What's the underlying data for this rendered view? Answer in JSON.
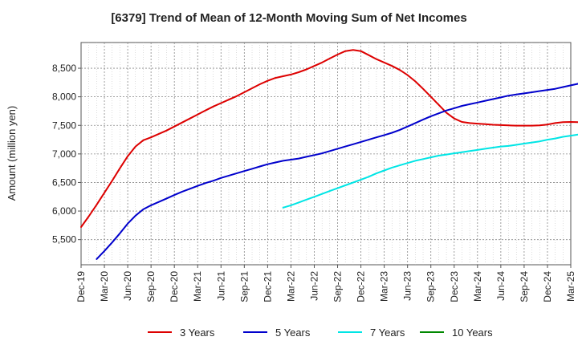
{
  "chart_data": {
    "type": "line",
    "title": "[6379]  Trend of Mean of 12-Month Moving Sum of Net Incomes",
    "ylabel": "Amount (million yen)",
    "xlabel": "",
    "ylim": [
      5060,
      8950
    ],
    "yticks": [
      5500,
      6000,
      6500,
      7000,
      7500,
      8000,
      8500
    ],
    "ytick_labels": [
      "5,500",
      "6,000",
      "6,500",
      "7,000",
      "7,500",
      "8,000",
      "8,500"
    ],
    "x_start": "2019-12",
    "x_end": "2025-03",
    "xtick_labels": [
      "Dec-19",
      "Mar-20",
      "Jun-20",
      "Sep-20",
      "Dec-20",
      "Mar-21",
      "Jun-21",
      "Sep-21",
      "Dec-21",
      "Mar-22",
      "Jun-22",
      "Sep-22",
      "Dec-22",
      "Mar-23",
      "Jun-23",
      "Sep-23",
      "Dec-23",
      "Mar-24",
      "Jun-24",
      "Sep-24",
      "Dec-24",
      "Mar-25"
    ],
    "grid": true,
    "legend_position": "bottom",
    "series": [
      {
        "name": "3 Years",
        "color": "#dd0000",
        "start": "2019-12",
        "values": [
          5720,
          5910,
          6110,
          6320,
          6530,
          6750,
          6960,
          7130,
          7240,
          7290,
          7350,
          7410,
          7480,
          7550,
          7620,
          7690,
          7760,
          7830,
          7890,
          7950,
          8010,
          8080,
          8150,
          8220,
          8280,
          8330,
          8360,
          8390,
          8430,
          8480,
          8540,
          8600,
          8670,
          8740,
          8800,
          8820,
          8800,
          8730,
          8660,
          8600,
          8540,
          8470,
          8380,
          8270,
          8140,
          8000,
          7860,
          7720,
          7620,
          7560,
          7540,
          7530,
          7520,
          7510,
          7505,
          7500,
          7495,
          7495,
          7495,
          7500,
          7515,
          7540,
          7555,
          7560,
          7555,
          7540,
          7535,
          7545,
          7570
        ]
      },
      {
        "name": "5 Years",
        "color": "#0000cc",
        "start": "2020-02",
        "values": [
          5160,
          5300,
          5450,
          5610,
          5780,
          5920,
          6030,
          6100,
          6160,
          6220,
          6280,
          6340,
          6390,
          6440,
          6490,
          6530,
          6580,
          6620,
          6660,
          6700,
          6740,
          6780,
          6820,
          6850,
          6880,
          6900,
          6920,
          6950,
          6980,
          7010,
          7050,
          7090,
          7130,
          7170,
          7210,
          7250,
          7290,
          7330,
          7370,
          7420,
          7480,
          7540,
          7600,
          7660,
          7710,
          7760,
          7800,
          7840,
          7870,
          7900,
          7930,
          7960,
          7990,
          8020,
          8040,
          8060,
          8080,
          8100,
          8120,
          8140,
          8170,
          8200,
          8230,
          8270,
          8300,
          8310,
          8290,
          8240,
          8190,
          8140,
          8090,
          8040
        ]
      },
      {
        "name": "7 Years",
        "color": "#00e5e5",
        "start": "2022-02",
        "values": [
          6060,
          6100,
          6150,
          6200,
          6250,
          6300,
          6350,
          6400,
          6450,
          6500,
          6550,
          6600,
          6660,
          6710,
          6760,
          6800,
          6840,
          6880,
          6910,
          6940,
          6970,
          6990,
          7010,
          7030,
          7050,
          7070,
          7090,
          7110,
          7130,
          7140,
          7160,
          7180,
          7200,
          7220,
          7250,
          7270,
          7300,
          7320,
          7340,
          7360,
          7380,
          7400,
          7420,
          7450,
          7480,
          7510
        ]
      },
      {
        "name": "10 Years",
        "color": "#008800",
        "start": "2024-12",
        "values": []
      }
    ]
  }
}
